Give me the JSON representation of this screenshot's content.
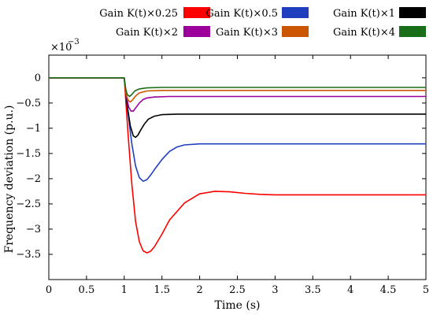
{
  "chart_data": {
    "type": "line",
    "title": "",
    "xlabel": "Time (s)",
    "ylabel": "Frequency deviation (p.u.)",
    "xlim": [
      0,
      5
    ],
    "ylim": [
      -4.0,
      0.45
    ],
    "y_multiplier_label": "×10",
    "y_multiplier_exponent": "−3",
    "grid": false,
    "legend_placement": "top",
    "x_ticks": [
      0,
      0.5,
      1,
      1.5,
      2,
      2.5,
      3,
      3.5,
      4,
      4.5,
      5
    ],
    "x_tick_labels": [
      "0",
      "0.5",
      "1",
      "1.5",
      "2",
      "2.5",
      "3",
      "3.5",
      "4",
      "4.5",
      "5"
    ],
    "y_ticks": [
      0,
      -0.5,
      -1,
      -1.5,
      -2,
      -2.5,
      -3,
      -3.5
    ],
    "y_tick_labels": [
      "0",
      "−0.5",
      "−1",
      "−1.5",
      "−2",
      "−2.5",
      "−3",
      "−3.5"
    ],
    "series": [
      {
        "name": "Gain K(t)×0.25",
        "color": "#ff0000",
        "x": [
          0,
          1.0,
          1.05,
          1.1,
          1.15,
          1.2,
          1.25,
          1.3,
          1.35,
          1.4,
          1.5,
          1.6,
          1.8,
          2.0,
          2.2,
          2.4,
          2.6,
          2.8,
          3.0,
          3.5,
          4.0,
          4.5,
          5.0
        ],
        "values": [
          0,
          0,
          -1.1,
          -2.1,
          -2.85,
          -3.25,
          -3.43,
          -3.47,
          -3.44,
          -3.35,
          -3.1,
          -2.82,
          -2.48,
          -2.3,
          -2.25,
          -2.26,
          -2.29,
          -2.31,
          -2.32,
          -2.32,
          -2.32,
          -2.32,
          -2.32
        ]
      },
      {
        "name": "Gain K(t)×0.5",
        "color": "#1f3fbf",
        "x": [
          0,
          1.0,
          1.05,
          1.1,
          1.15,
          1.2,
          1.25,
          1.3,
          1.35,
          1.4,
          1.5,
          1.6,
          1.7,
          1.8,
          2.0,
          2.2,
          2.5,
          3.0,
          3.5,
          4.0,
          4.5,
          5.0
        ],
        "values": [
          0,
          0,
          -0.7,
          -1.3,
          -1.75,
          -1.98,
          -2.05,
          -2.02,
          -1.93,
          -1.82,
          -1.62,
          -1.46,
          -1.37,
          -1.33,
          -1.31,
          -1.31,
          -1.31,
          -1.31,
          -1.31,
          -1.31,
          -1.31,
          -1.31
        ]
      },
      {
        "name": "Gain K(t)×1",
        "color": "#000000",
        "x": [
          0,
          1.0,
          1.04,
          1.08,
          1.12,
          1.15,
          1.18,
          1.22,
          1.27,
          1.32,
          1.4,
          1.5,
          1.7,
          2.0,
          2.5,
          3.0,
          3.5,
          4.0,
          4.5,
          5.0
        ],
        "values": [
          0,
          0,
          -0.55,
          -0.95,
          -1.15,
          -1.18,
          -1.14,
          -1.03,
          -0.91,
          -0.82,
          -0.76,
          -0.73,
          -0.72,
          -0.72,
          -0.72,
          -0.72,
          -0.72,
          -0.72,
          -0.72,
          -0.72
        ]
      },
      {
        "name": "Gain K(t)×2",
        "color": "#9b009b",
        "x": [
          0,
          1.0,
          1.03,
          1.06,
          1.09,
          1.12,
          1.15,
          1.2,
          1.25,
          1.3,
          1.4,
          1.6,
          2.0,
          2.5,
          3.0,
          3.5,
          4.0,
          4.5,
          5.0
        ],
        "values": [
          0,
          0,
          -0.38,
          -0.58,
          -0.66,
          -0.66,
          -0.6,
          -0.5,
          -0.43,
          -0.4,
          -0.38,
          -0.37,
          -0.37,
          -0.37,
          -0.37,
          -0.37,
          -0.37,
          -0.37,
          -0.37
        ]
      },
      {
        "name": "Gain K(t)×3",
        "color": "#cc5500",
        "x": [
          0,
          1.0,
          1.02,
          1.05,
          1.08,
          1.11,
          1.15,
          1.2,
          1.3,
          1.5,
          2.0,
          2.5,
          3.0,
          3.5,
          4.0,
          4.5,
          5.0
        ],
        "values": [
          0,
          0,
          -0.3,
          -0.44,
          -0.48,
          -0.44,
          -0.36,
          -0.3,
          -0.26,
          -0.25,
          -0.25,
          -0.25,
          -0.25,
          -0.25,
          -0.25,
          -0.25,
          -0.25
        ]
      },
      {
        "name": "Gain K(t)×4",
        "color": "#1a6e1a",
        "x": [
          0,
          1.0,
          1.02,
          1.04,
          1.07,
          1.1,
          1.14,
          1.2,
          1.3,
          1.5,
          2.0,
          2.5,
          3.0,
          3.5,
          4.0,
          4.5,
          5.0
        ],
        "values": [
          0,
          0,
          -0.22,
          -0.33,
          -0.37,
          -0.33,
          -0.26,
          -0.22,
          -0.2,
          -0.19,
          -0.19,
          -0.19,
          -0.19,
          -0.19,
          -0.19,
          -0.19,
          -0.19
        ]
      }
    ]
  }
}
